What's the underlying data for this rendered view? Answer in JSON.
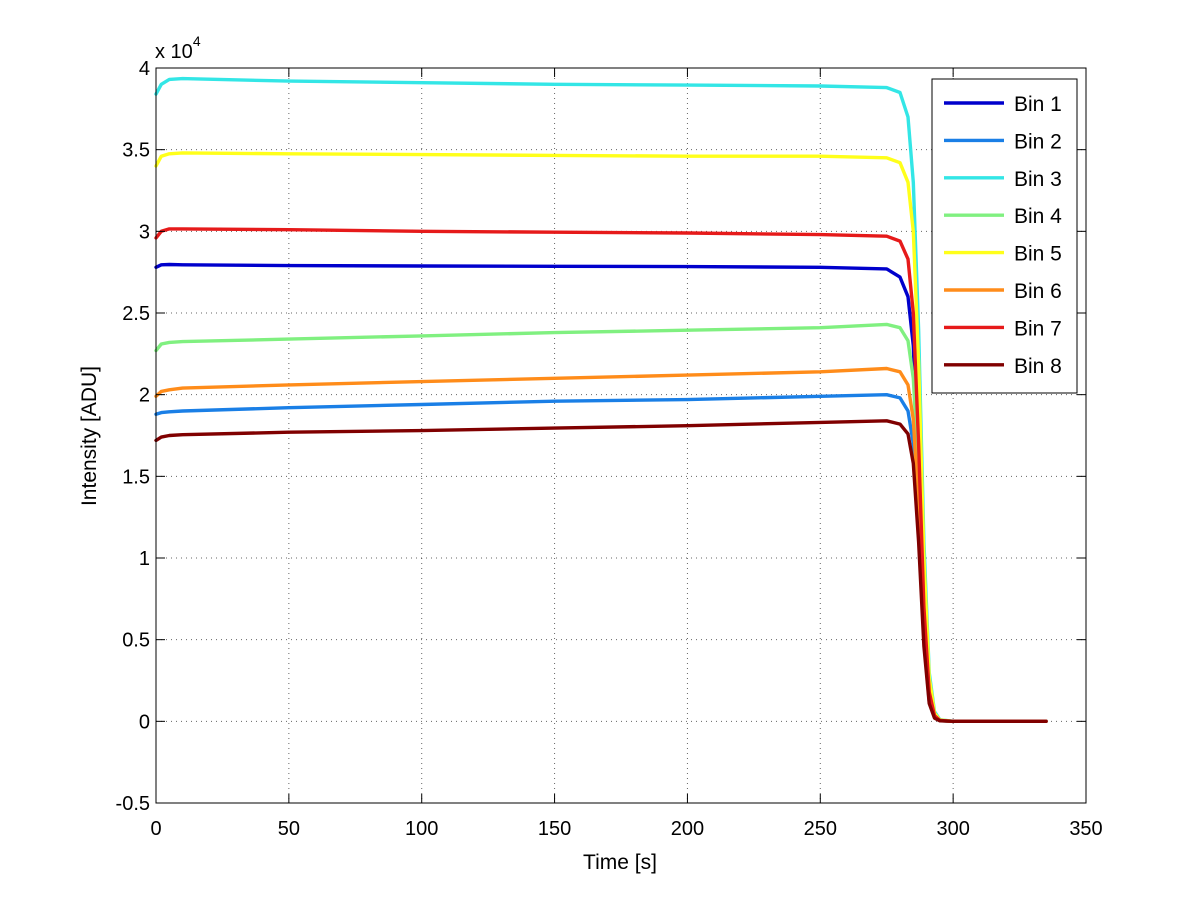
{
  "chart_data": {
    "type": "line",
    "title": "",
    "xlabel": "Time [s]",
    "ylabel": "Intensity [ADU]",
    "xlim": [
      0,
      350
    ],
    "ylim": [
      -5000,
      40000
    ],
    "y_multiplier_label": "x 10",
    "y_multiplier_exponent": "4",
    "x_ticks": [
      0,
      50,
      100,
      150,
      200,
      250,
      300,
      350
    ],
    "x_tick_labels": [
      "0",
      "50",
      "100",
      "150",
      "200",
      "250",
      "300",
      "350"
    ],
    "y_ticks": [
      -5000,
      0,
      5000,
      10000,
      15000,
      20000,
      25000,
      30000,
      35000,
      40000
    ],
    "y_tick_labels": [
      "-0.5",
      "0",
      "0.5",
      "1",
      "1.5",
      "2",
      "2.5",
      "3",
      "3.5",
      "4"
    ],
    "grid": true,
    "legend_position": "top-right",
    "series": [
      {
        "name": "Bin 1",
        "color": "#0000cc",
        "x": [
          0,
          2,
          5,
          10,
          50,
          100,
          150,
          200,
          250,
          275,
          280,
          283,
          285,
          287,
          289,
          291,
          293,
          295,
          300,
          320,
          335
        ],
        "values": [
          27800,
          27950,
          27970,
          27950,
          27900,
          27880,
          27860,
          27840,
          27800,
          27700,
          27200,
          26000,
          23000,
          15000,
          6000,
          1500,
          300,
          50,
          0,
          0,
          0
        ]
      },
      {
        "name": "Bin 2",
        "color": "#1a7fe6",
        "x": [
          0,
          2,
          5,
          10,
          50,
          100,
          150,
          200,
          250,
          275,
          280,
          283,
          285,
          287,
          289,
          291,
          293,
          295,
          300,
          320,
          335
        ],
        "values": [
          18800,
          18900,
          18950,
          19000,
          19200,
          19400,
          19600,
          19700,
          19900,
          20000,
          19800,
          19000,
          17000,
          12000,
          5000,
          1200,
          250,
          40,
          0,
          0,
          0
        ]
      },
      {
        "name": "Bin 3",
        "color": "#33e6e6",
        "x": [
          0,
          2,
          5,
          10,
          50,
          100,
          150,
          200,
          250,
          275,
          280,
          283,
          285,
          287,
          289,
          291,
          293,
          295,
          300,
          320,
          335
        ],
        "values": [
          38400,
          39000,
          39300,
          39350,
          39200,
          39100,
          39000,
          38950,
          38900,
          38800,
          38500,
          37000,
          33000,
          24000,
          11000,
          3000,
          600,
          100,
          0,
          0,
          0
        ]
      },
      {
        "name": "Bin 4",
        "color": "#80f080",
        "x": [
          0,
          2,
          5,
          10,
          50,
          100,
          150,
          200,
          250,
          275,
          280,
          283,
          285,
          287,
          289,
          291,
          293,
          295,
          300,
          320,
          335
        ],
        "values": [
          22700,
          23100,
          23200,
          23250,
          23400,
          23600,
          23800,
          23950,
          24100,
          24300,
          24100,
          23300,
          21000,
          15000,
          6500,
          1600,
          300,
          50,
          0,
          0,
          0
        ]
      },
      {
        "name": "Bin 5",
        "color": "#ffff1a",
        "x": [
          0,
          2,
          5,
          10,
          50,
          100,
          150,
          200,
          250,
          275,
          280,
          283,
          285,
          287,
          289,
          291,
          293,
          295,
          300,
          320,
          335
        ],
        "values": [
          34000,
          34600,
          34750,
          34800,
          34750,
          34700,
          34650,
          34600,
          34600,
          34500,
          34200,
          33000,
          30000,
          22000,
          10000,
          2700,
          500,
          80,
          0,
          0,
          0
        ]
      },
      {
        "name": "Bin 6",
        "color": "#ff8c1a",
        "x": [
          0,
          2,
          5,
          10,
          50,
          100,
          150,
          200,
          250,
          275,
          280,
          283,
          285,
          287,
          289,
          291,
          293,
          295,
          300,
          320,
          335
        ],
        "values": [
          19900,
          20200,
          20300,
          20400,
          20600,
          20800,
          21000,
          21200,
          21400,
          21600,
          21400,
          20600,
          18500,
          13000,
          5500,
          1400,
          250,
          40,
          0,
          0,
          0
        ]
      },
      {
        "name": "Bin 7",
        "color": "#e61a1a",
        "x": [
          0,
          2,
          5,
          10,
          50,
          100,
          150,
          200,
          250,
          275,
          280,
          283,
          285,
          287,
          289,
          291,
          293,
          295,
          300,
          320,
          335
        ],
        "values": [
          29600,
          30000,
          30150,
          30150,
          30100,
          30000,
          29950,
          29900,
          29800,
          29700,
          29400,
          28300,
          25000,
          17000,
          7000,
          1800,
          350,
          60,
          0,
          0,
          0
        ]
      },
      {
        "name": "Bin 8",
        "color": "#800000",
        "x": [
          0,
          2,
          5,
          10,
          50,
          100,
          150,
          200,
          250,
          275,
          280,
          283,
          285,
          287,
          289,
          291,
          293,
          295,
          300,
          320,
          335
        ],
        "values": [
          17200,
          17400,
          17500,
          17550,
          17700,
          17800,
          17950,
          18100,
          18300,
          18400,
          18200,
          17600,
          15800,
          11000,
          4600,
          1100,
          200,
          30,
          0,
          0,
          0
        ]
      }
    ]
  }
}
